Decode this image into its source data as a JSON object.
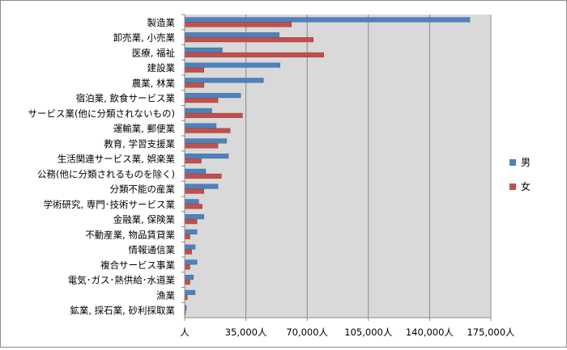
{
  "chart_data": {
    "type": "bar",
    "orientation": "horizontal",
    "title": "",
    "xlabel": "",
    "ylabel": "",
    "xlim": [
      0,
      175000
    ],
    "x_ticks": [
      0,
      35000,
      70000,
      105000,
      140000,
      175000
    ],
    "x_tick_labels": [
      "人",
      "35,000人",
      "70,000人",
      "105,000人",
      "140,000人",
      "175,000人"
    ],
    "grid": "vertical",
    "legend_position": "right",
    "categories": [
      "製造業",
      "卸売業, 小売業",
      "医療, 福祉",
      "建設業",
      "農業, 林業",
      "宿泊業, 飲食サービス業",
      "サービス業(他に分類されないもの)",
      "運輸業, 郵便業",
      "教育, 学習支援業",
      "生活関連サービス業, 娯楽業",
      "公務(他に分類されるものを除く)",
      "分類不能の産業",
      "学術研究, 専門･技術サービス業",
      "金融業, 保険業",
      "不動産業, 物品賃貸業",
      "情報通信業",
      "複合サービス事業",
      "電気･ガス･熱供給･水道業",
      "漁業",
      "鉱業, 採石業, 砂利採取業"
    ],
    "series": [
      {
        "name": "男",
        "color": "#4f81bd",
        "values": [
          163000,
          54000,
          21500,
          54500,
          45000,
          32000,
          15500,
          18000,
          24000,
          25000,
          12000,
          19000,
          8000,
          11000,
          7000,
          6000,
          7000,
          5000,
          6000,
          1000
        ]
      },
      {
        "name": "女",
        "color": "#c0504d",
        "values": [
          61000,
          73500,
          79500,
          11000,
          11000,
          19000,
          33000,
          26000,
          19000,
          9500,
          21000,
          11000,
          10000,
          7000,
          3000,
          4000,
          3000,
          3000,
          1500,
          500
        ]
      }
    ]
  }
}
